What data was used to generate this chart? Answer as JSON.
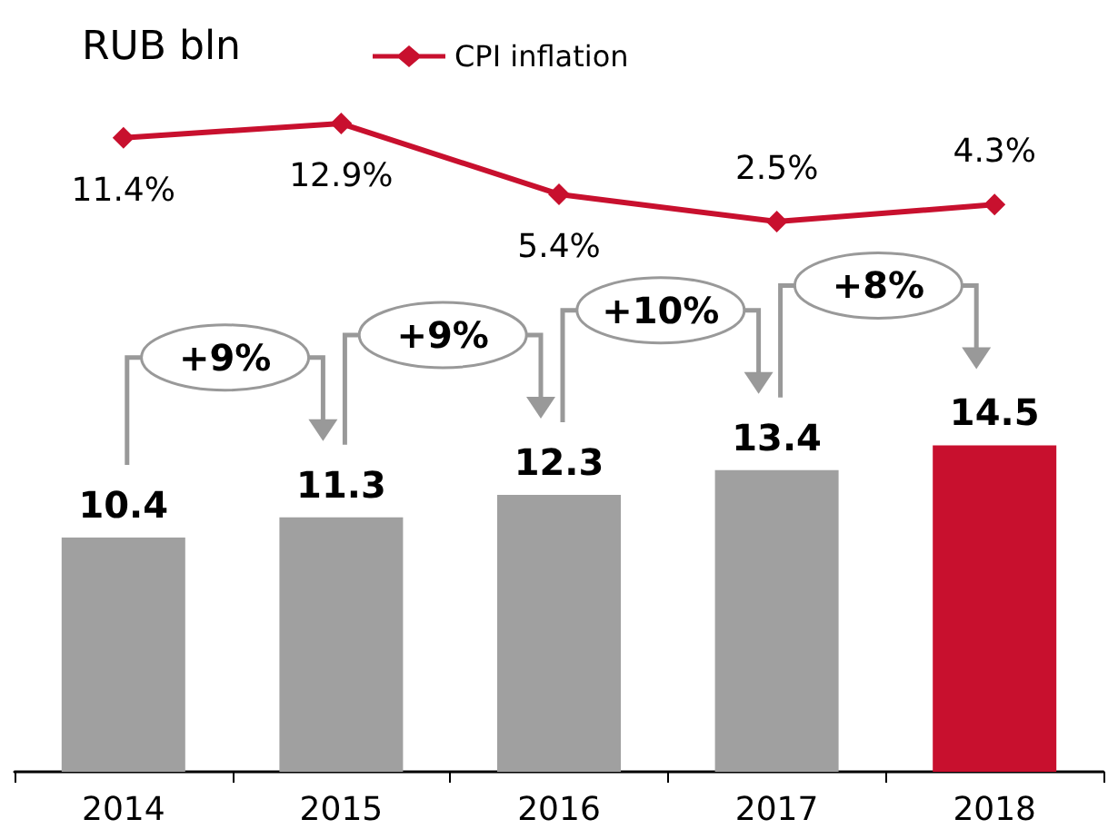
{
  "chart_data": [
    {
      "type": "line",
      "title": "RUB bln",
      "categories": [
        "2014",
        "2015",
        "2016",
        "2017",
        "2018"
      ],
      "tick_labels": false,
      "series": [
        {
          "name": "CPI inflation",
          "color": "#c8102e",
          "values": [
            11.4,
            12.9,
            5.4,
            2.5,
            4.3
          ],
          "value_labels": [
            "11.4%",
            "12.9%",
            "5.4%",
            "2.5%",
            "4.3%"
          ]
        }
      ],
      "legend": "top",
      "marker": "diamond",
      "line_style": "solid"
    },
    {
      "type": "bar",
      "categories": [
        "2014",
        "2015",
        "2016",
        "2017",
        "2018"
      ],
      "series": [
        {
          "type": "bar",
          "colors": [
            "#a0a0a0",
            "#a0a0a0",
            "#a0a0a0",
            "#a0a0a0",
            "#c8102e"
          ],
          "values": [
            10.4,
            11.3,
            12.3,
            13.4,
            14.5
          ]
        }
      ],
      "annotations": [
        "+9%",
        "+9%",
        "+10%",
        "+8%"
      ],
      "data_labels": true
    }
  ]
}
